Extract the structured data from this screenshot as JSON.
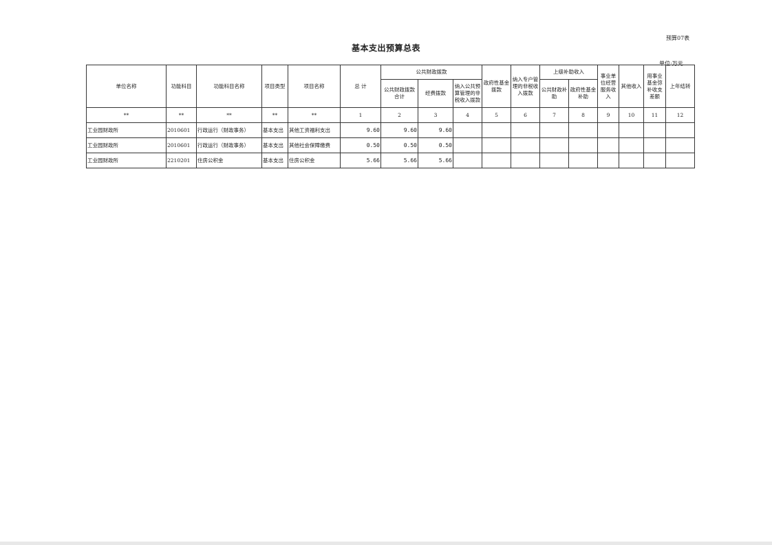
{
  "form_number": "预算07表",
  "title": "基本支出预算总表",
  "unit": "单位:万元",
  "headers": {
    "unit_name": "单位名称",
    "func_code": "功能科目",
    "func_name": "功能科目名称",
    "item_type": "项目类型",
    "item_name": "项目名称",
    "total": "总  计",
    "public_finance": "公共财政拨款",
    "public_finance_total": "公共财政拨款合计",
    "operating_funds": "经费拨款",
    "non_tax_in_budget": "纳入公共预算管理的非税收入拨款",
    "gov_fund": "政府性基金拨款",
    "special_account_non_tax": "纳入专户管理的非税收入拨款",
    "superior_subsidy": "上级补助收入",
    "public_finance_subsidy": "公共财政补助",
    "gov_fund_subsidy": "政府性基金补助",
    "business_service_income": "事业单位经营服务收入",
    "other_income": "其他收入",
    "fund_offset": "用事业基金弥补收支差额",
    "carryover": "上年结转"
  },
  "index_row": [
    "**",
    "**",
    "**",
    "**",
    "**",
    "1",
    "2",
    "3",
    "4",
    "5",
    "6",
    "7",
    "8",
    "9",
    "10",
    "11",
    "12"
  ],
  "rows": [
    {
      "unit": "工业园财政所",
      "code": "2010601",
      "func": "行政运行（财政事务）",
      "type": "基本支出",
      "item": "其他工资福利支出",
      "total": "9.60",
      "pf_total": "9.60",
      "operating": "9.60"
    },
    {
      "unit": "工业园财政所",
      "code": "2010601",
      "func": "行政运行（财政事务）",
      "type": "基本支出",
      "item": "其他社会保障缴费",
      "total": "0.50",
      "pf_total": "0.50",
      "operating": "0.50"
    },
    {
      "unit": "工业园财政所",
      "code": "2210201",
      "func": "住房公积金",
      "type": "基本支出",
      "item": "住房公积金",
      "total": "5.66",
      "pf_total": "5.66",
      "operating": "5.66"
    }
  ]
}
